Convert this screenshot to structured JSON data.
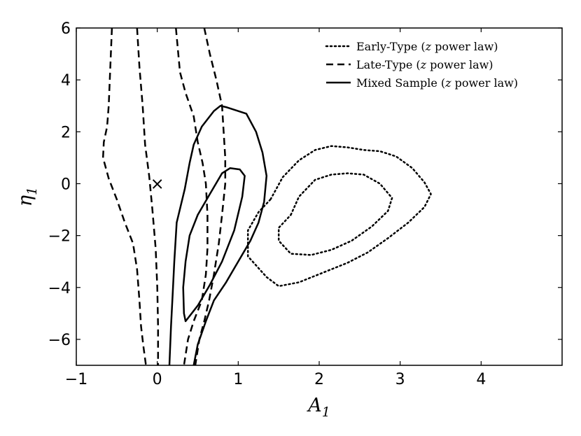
{
  "chart_data": {
    "type": "line",
    "xlabel": "A",
    "xlabel_sub": "1",
    "ylabel": "η",
    "ylabel_sub": "1",
    "xlim": [
      -1,
      5
    ],
    "ylim": [
      -7,
      6
    ],
    "xticks": [
      -1,
      0,
      1,
      2,
      3,
      4
    ],
    "yticks": [
      -6,
      -4,
      -2,
      0,
      2,
      4,
      6
    ],
    "xtick_labels": [
      "−1",
      "0",
      "1",
      "2",
      "3",
      "4"
    ],
    "ytick_labels": [
      "−6",
      "−4",
      "−2",
      "0",
      "2",
      "4",
      "6"
    ],
    "grid": false,
    "legend_position": "top-right",
    "legend": [
      {
        "label": "Early-Type (",
        "var": "z",
        "suffix": " power law)",
        "style": "dotted"
      },
      {
        "label": "Late-Type (",
        "var": "z",
        "suffix": " power law)",
        "style": "dashed"
      },
      {
        "label": "Mixed Sample (",
        "var": "z",
        "suffix": " power law)",
        "style": "solid"
      }
    ],
    "marker": {
      "x": 0,
      "y": 0,
      "symbol": "×"
    },
    "series": [
      {
        "name": "Early-Type (z power law)",
        "style": "dotted",
        "contours": [
          {
            "closed": true,
            "points": [
              [
                1.4,
                -0.6
              ],
              [
                1.55,
                0.25
              ],
              [
                1.75,
                0.9
              ],
              [
                1.95,
                1.3
              ],
              [
                2.15,
                1.45
              ],
              [
                2.35,
                1.4
              ],
              [
                2.55,
                1.3
              ],
              [
                2.75,
                1.25
              ],
              [
                2.95,
                1.05
              ],
              [
                3.15,
                0.6
              ],
              [
                3.3,
                0.05
              ],
              [
                3.38,
                -0.4
              ],
              [
                3.3,
                -0.9
              ],
              [
                3.1,
                -1.5
              ],
              [
                2.85,
                -2.1
              ],
              [
                2.6,
                -2.65
              ],
              [
                2.35,
                -3.05
              ],
              [
                2.15,
                -3.3
              ],
              [
                1.95,
                -3.55
              ],
              [
                1.75,
                -3.8
              ],
              [
                1.5,
                -3.95
              ],
              [
                1.35,
                -3.6
              ],
              [
                1.12,
                -2.8
              ],
              [
                1.12,
                -1.8
              ],
              [
                1.25,
                -1.1
              ]
            ]
          },
          {
            "closed": true,
            "points": [
              [
                1.65,
                -1.2
              ],
              [
                1.75,
                -0.5
              ],
              [
                1.95,
                0.15
              ],
              [
                2.15,
                0.35
              ],
              [
                2.35,
                0.4
              ],
              [
                2.55,
                0.35
              ],
              [
                2.75,
                0.0
              ],
              [
                2.9,
                -0.55
              ],
              [
                2.85,
                -1.05
              ],
              [
                2.65,
                -1.65
              ],
              [
                2.4,
                -2.2
              ],
              [
                2.15,
                -2.55
              ],
              [
                1.9,
                -2.75
              ],
              [
                1.65,
                -2.7
              ],
              [
                1.5,
                -2.2
              ],
              [
                1.5,
                -1.7
              ]
            ]
          }
        ]
      },
      {
        "name": "Late-Type (z power law)",
        "style": "dashed",
        "contours": [
          {
            "closed": false,
            "points": [
              [
                -0.56,
                6.0
              ],
              [
                -0.58,
                4.5
              ],
              [
                -0.6,
                3.0
              ],
              [
                -0.62,
                2.2
              ],
              [
                -0.66,
                1.6
              ],
              [
                -0.67,
                1.0
              ],
              [
                -0.6,
                0.2
              ],
              [
                -0.5,
                -0.6
              ],
              [
                -0.4,
                -1.5
              ],
              [
                -0.3,
                -2.3
              ],
              [
                -0.25,
                -3.3
              ],
              [
                -0.22,
                -4.5
              ],
              [
                -0.2,
                -5.5
              ],
              [
                -0.17,
                -6.3
              ],
              [
                -0.14,
                -7.0
              ]
            ]
          },
          {
            "closed": false,
            "points": [
              [
                -0.25,
                6.0
              ],
              [
                -0.22,
                4.5
              ],
              [
                -0.18,
                3.0
              ],
              [
                -0.15,
                1.5
              ],
              [
                -0.1,
                0.3
              ],
              [
                -0.06,
                -1.0
              ],
              [
                -0.02,
                -2.5
              ],
              [
                0.0,
                -4.0
              ],
              [
                0.01,
                -5.5
              ],
              [
                0.01,
                -7.0
              ]
            ]
          },
          {
            "closed": false,
            "points": [
              [
                0.23,
                6.0
              ],
              [
                0.28,
                4.3
              ],
              [
                0.35,
                3.5
              ],
              [
                0.45,
                2.6
              ],
              [
                0.5,
                1.6
              ],
              [
                0.56,
                0.8
              ],
              [
                0.6,
                0.0
              ],
              [
                0.62,
                -1.2
              ],
              [
                0.62,
                -2.5
              ],
              [
                0.6,
                -3.5
              ],
              [
                0.55,
                -4.5
              ],
              [
                0.45,
                -5.3
              ],
              [
                0.38,
                -6.0
              ],
              [
                0.33,
                -7.0
              ]
            ]
          },
          {
            "closed": false,
            "points": [
              [
                0.58,
                6.0
              ],
              [
                0.65,
                5.0
              ],
              [
                0.73,
                4.0
              ],
              [
                0.8,
                3.0
              ],
              [
                0.82,
                2.0
              ],
              [
                0.84,
                1.0
              ],
              [
                0.84,
                0.0
              ],
              [
                0.8,
                -1.2
              ],
              [
                0.76,
                -2.3
              ],
              [
                0.7,
                -3.5
              ],
              [
                0.64,
                -4.5
              ],
              [
                0.58,
                -5.3
              ],
              [
                0.52,
                -6.0
              ],
              [
                0.47,
                -7.0
              ]
            ]
          }
        ]
      },
      {
        "name": "Mixed Sample (z power law)",
        "style": "solid",
        "contours": [
          {
            "closed": false,
            "points": [
              [
                0.15,
                -7.0
              ],
              [
                0.17,
                -5.5
              ],
              [
                0.19,
                -4.3
              ],
              [
                0.21,
                -3.0
              ],
              [
                0.24,
                -1.5
              ],
              [
                0.34,
                -0.2
              ],
              [
                0.4,
                0.8
              ],
              [
                0.45,
                1.5
              ],
              [
                0.55,
                2.2
              ],
              [
                0.7,
                2.8
              ],
              [
                0.78,
                3.0
              ],
              [
                0.85,
                2.95
              ],
              [
                0.95,
                2.85
              ],
              [
                1.1,
                2.7
              ],
              [
                1.22,
                2.0
              ],
              [
                1.3,
                1.2
              ],
              [
                1.35,
                0.3
              ],
              [
                1.32,
                -0.7
              ],
              [
                1.25,
                -1.5
              ],
              [
                1.15,
                -2.2
              ],
              [
                1.0,
                -3.0
              ],
              [
                0.85,
                -3.8
              ],
              [
                0.7,
                -4.5
              ],
              [
                0.6,
                -5.3
              ],
              [
                0.5,
                -6.2
              ],
              [
                0.45,
                -7.0
              ]
            ]
          },
          {
            "closed": true,
            "points": [
              [
                0.35,
                -5.3
              ],
              [
                0.5,
                -4.7
              ],
              [
                0.65,
                -3.9
              ],
              [
                0.8,
                -3.0
              ],
              [
                0.95,
                -1.8
              ],
              [
                1.05,
                -0.5
              ],
              [
                1.08,
                0.3
              ],
              [
                1.02,
                0.55
              ],
              [
                0.9,
                0.6
              ],
              [
                0.8,
                0.4
              ],
              [
                0.65,
                -0.4
              ],
              [
                0.5,
                -1.2
              ],
              [
                0.4,
                -2.0
              ],
              [
                0.35,
                -3.0
              ],
              [
                0.32,
                -4.0
              ],
              [
                0.33,
                -5.0
              ]
            ]
          }
        ]
      }
    ]
  }
}
